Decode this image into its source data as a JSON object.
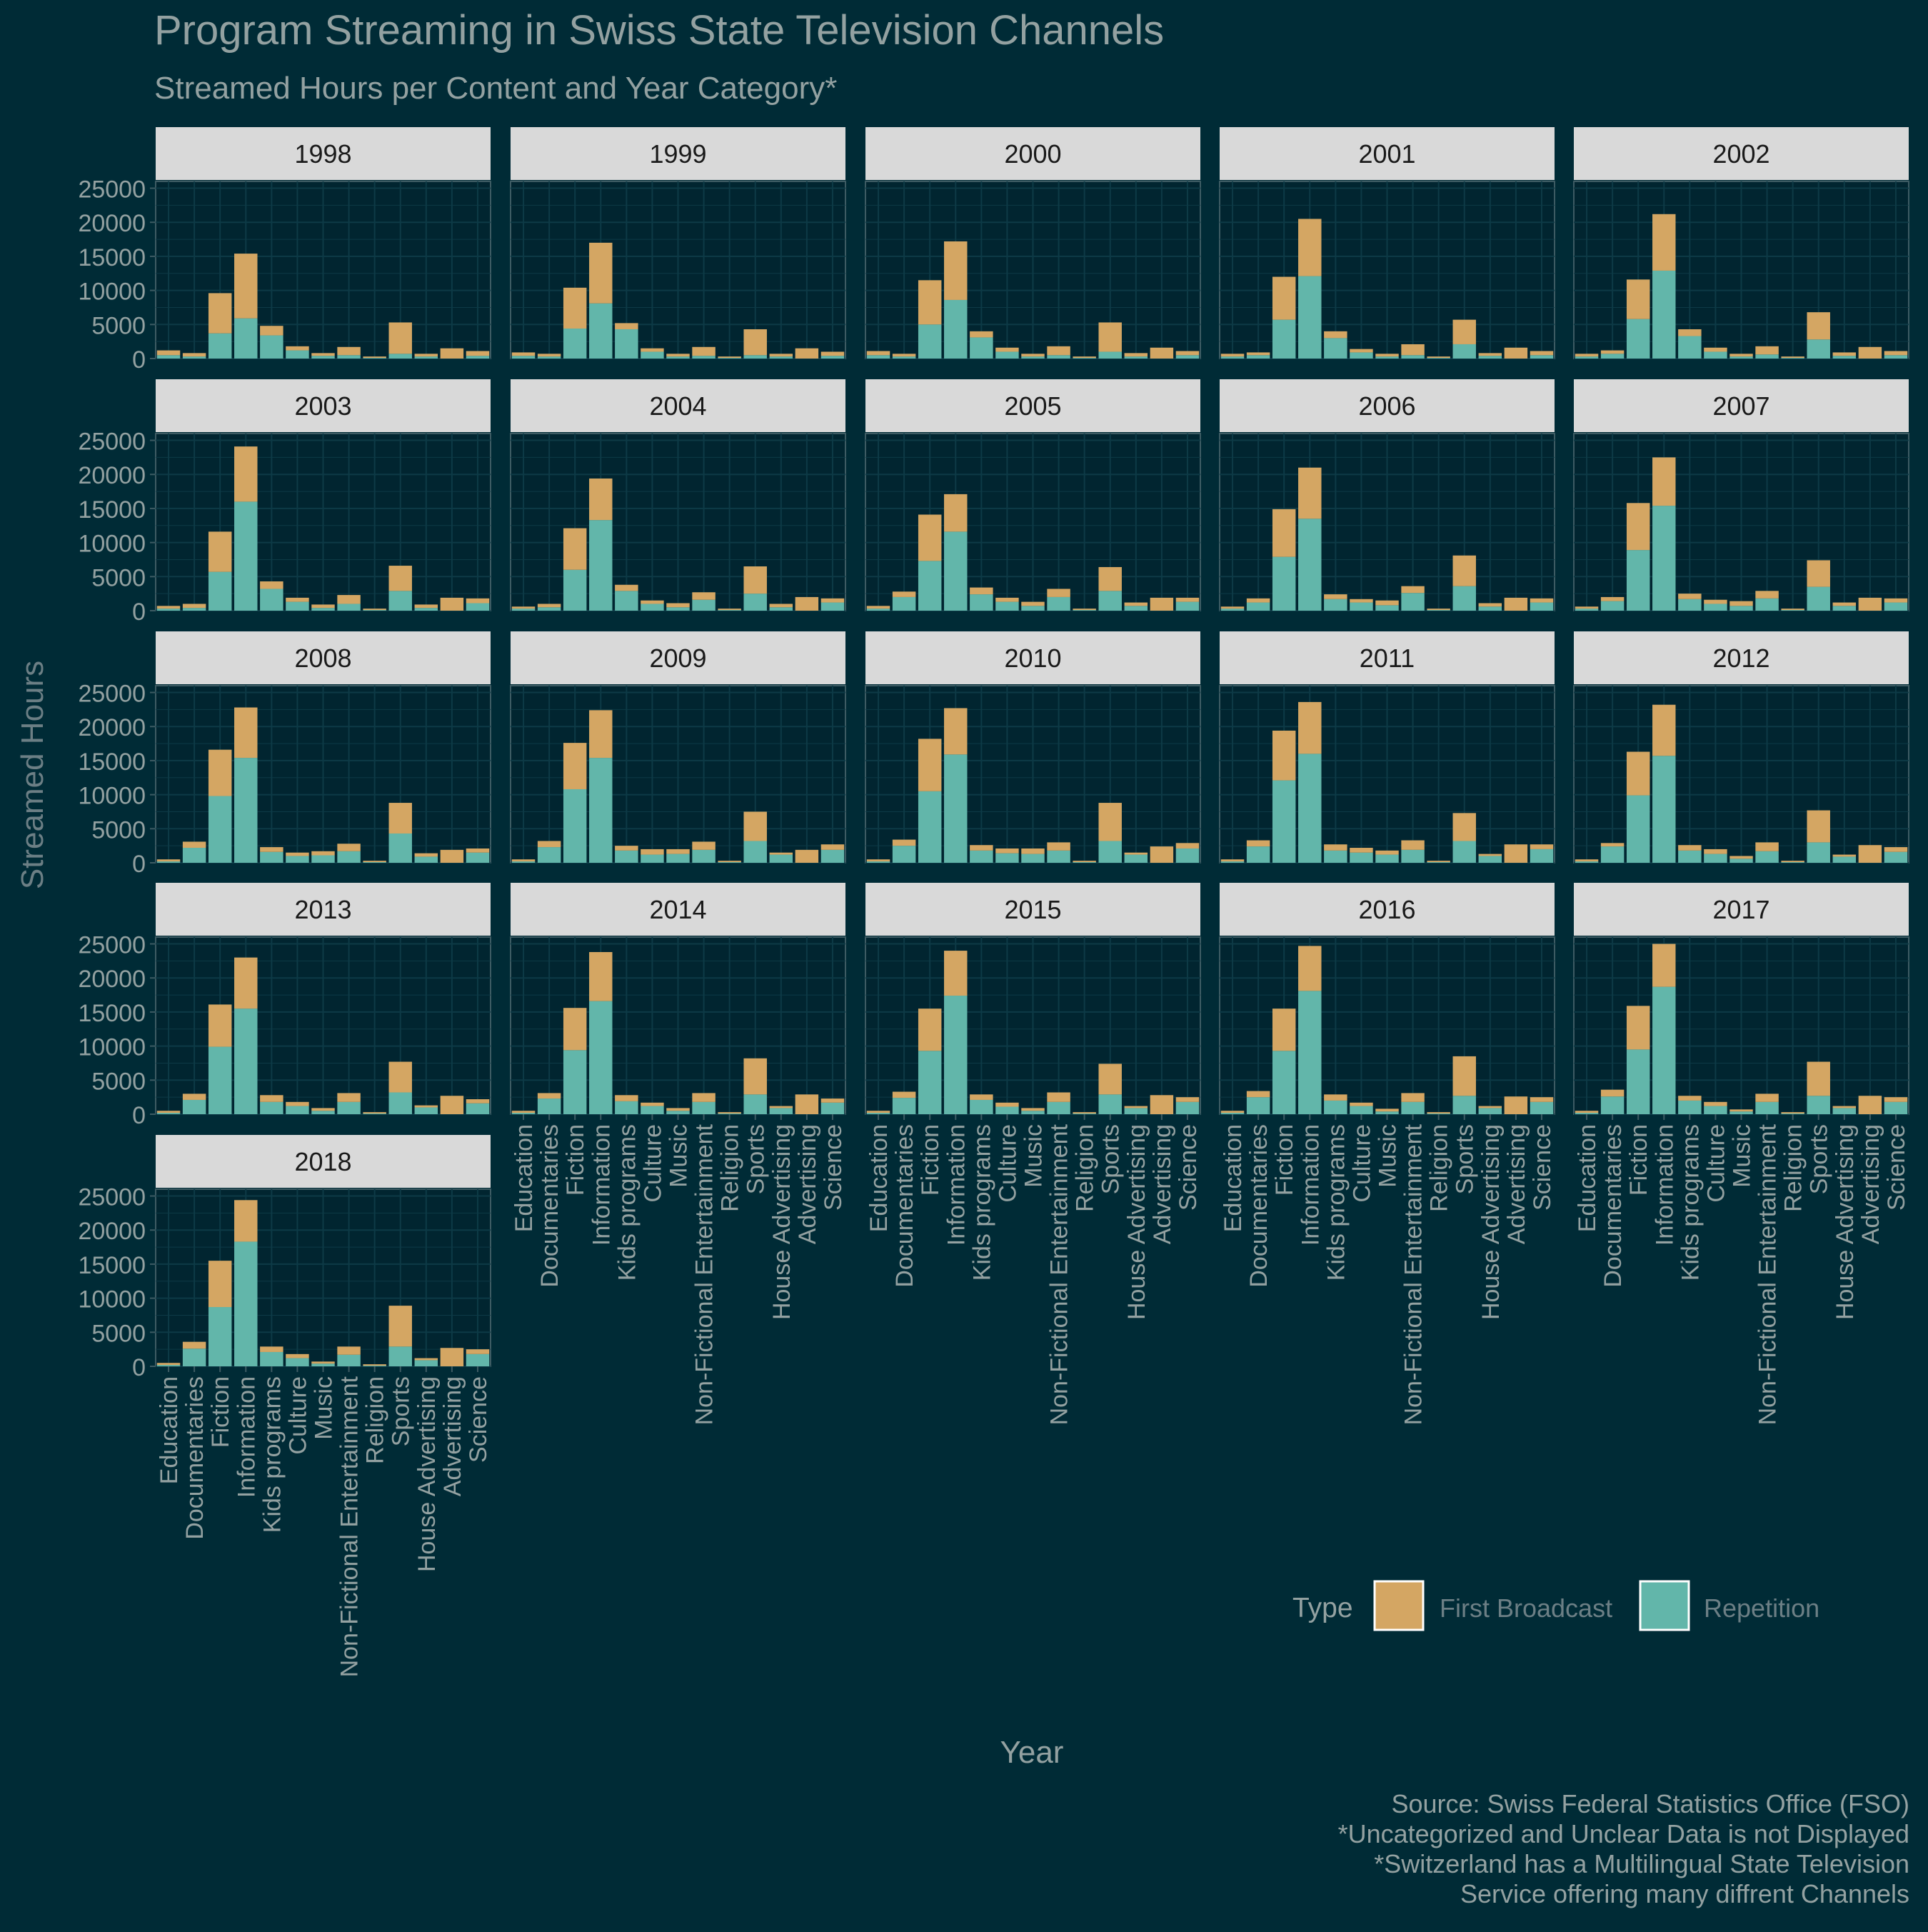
{
  "chart_data": {
    "type": "bar",
    "stacked": true,
    "facet_by": "year",
    "title": "Program Streaming in Swiss State Television Channels",
    "subtitle": "Streamed Hours per Content and Year Category*",
    "xlabel": "Year",
    "ylabel": "Streamed Hours",
    "ylim": [
      0,
      26000
    ],
    "yticks": [
      0,
      5000,
      10000,
      15000,
      20000,
      25000
    ],
    "grid": true,
    "legend": {
      "title": "Type",
      "placement": "bottom-right",
      "items": [
        {
          "name": "First Broadcast",
          "color": "#d4a663"
        },
        {
          "name": "Repetition",
          "color": "#62b6aa"
        }
      ]
    },
    "categories": [
      "Education",
      "Documentaries",
      "Fiction",
      "Information",
      "Kids programs",
      "Culture",
      "Music",
      "Non-Fictional Entertainment",
      "Religion",
      "Sports",
      "House Advertising",
      "Advertising",
      "Science"
    ],
    "facets": [
      {
        "year": "1998",
        "repetition": [
          500,
          300,
          3700,
          5900,
          3400,
          1200,
          400,
          500,
          100,
          700,
          300,
          0,
          400
        ],
        "first_broadcast": [
          700,
          500,
          5900,
          9500,
          1400,
          600,
          400,
          1200,
          200,
          4600,
          400,
          1500,
          700
        ]
      },
      {
        "year": "1999",
        "repetition": [
          400,
          300,
          4400,
          8100,
          4300,
          1000,
          300,
          400,
          100,
          500,
          300,
          0,
          400
        ],
        "first_broadcast": [
          500,
          400,
          6000,
          8900,
          900,
          500,
          400,
          1300,
          200,
          3800,
          400,
          1500,
          600
        ]
      },
      {
        "year": "2000",
        "repetition": [
          500,
          300,
          5000,
          8600,
          3100,
          1000,
          300,
          500,
          100,
          1000,
          300,
          0,
          500
        ],
        "first_broadcast": [
          600,
          400,
          6500,
          8600,
          900,
          600,
          400,
          1300,
          200,
          4300,
          500,
          1600,
          600
        ]
      },
      {
        "year": "2001",
        "repetition": [
          300,
          500,
          5700,
          12100,
          3000,
          900,
          300,
          500,
          100,
          2100,
          400,
          0,
          500
        ],
        "first_broadcast": [
          400,
          400,
          6300,
          8400,
          1000,
          500,
          400,
          1600,
          200,
          3600,
          400,
          1600,
          600
        ]
      },
      {
        "year": "2002",
        "repetition": [
          300,
          700,
          5800,
          12900,
          3300,
          1000,
          300,
          600,
          100,
          2800,
          400,
          0,
          500
        ],
        "first_broadcast": [
          400,
          500,
          5800,
          8300,
          1000,
          600,
          400,
          1200,
          200,
          4000,
          500,
          1700,
          600
        ]
      },
      {
        "year": "2003",
        "repetition": [
          300,
          400,
          5700,
          16000,
          3200,
          1300,
          400,
          1000,
          100,
          2900,
          400,
          0,
          1100
        ],
        "first_broadcast": [
          400,
          600,
          5900,
          8100,
          1100,
          600,
          500,
          1300,
          200,
          3700,
          500,
          1900,
          700
        ]
      },
      {
        "year": "2004",
        "repetition": [
          300,
          500,
          6000,
          13300,
          2900,
          1000,
          500,
          1600,
          100,
          2500,
          500,
          0,
          1200
        ],
        "first_broadcast": [
          300,
          500,
          6100,
          6100,
          900,
          500,
          600,
          1100,
          200,
          4000,
          500,
          2000,
          600
        ]
      },
      {
        "year": "2005",
        "repetition": [
          300,
          2000,
          7300,
          11600,
          2400,
          1300,
          700,
          2000,
          100,
          2900,
          700,
          0,
          1300
        ],
        "first_broadcast": [
          400,
          800,
          6800,
          5500,
          1000,
          600,
          600,
          1200,
          200,
          3500,
          500,
          1900,
          600
        ]
      },
      {
        "year": "2006",
        "repetition": [
          300,
          1200,
          7900,
          13500,
          1700,
          1200,
          800,
          2600,
          100,
          3600,
          600,
          0,
          1200
        ],
        "first_broadcast": [
          300,
          600,
          7000,
          7500,
          700,
          500,
          700,
          1000,
          200,
          4500,
          500,
          1900,
          600
        ]
      },
      {
        "year": "2007",
        "repetition": [
          300,
          1400,
          8900,
          15400,
          1700,
          1000,
          700,
          1800,
          100,
          3500,
          700,
          0,
          1200
        ],
        "first_broadcast": [
          300,
          600,
          6900,
          7100,
          800,
          600,
          700,
          1100,
          200,
          3900,
          500,
          1900,
          600
        ]
      },
      {
        "year": "2008",
        "repetition": [
          200,
          2200,
          9800,
          15400,
          1600,
          1000,
          1100,
          1700,
          100,
          4300,
          900,
          0,
          1500
        ],
        "first_broadcast": [
          300,
          900,
          6800,
          7400,
          700,
          500,
          600,
          1100,
          200,
          4500,
          500,
          1900,
          600
        ]
      },
      {
        "year": "2009",
        "repetition": [
          200,
          2300,
          10800,
          15400,
          1800,
          1200,
          1300,
          1900,
          100,
          3200,
          1200,
          0,
          1900
        ],
        "first_broadcast": [
          300,
          900,
          6800,
          7000,
          700,
          800,
          700,
          1200,
          200,
          4300,
          300,
          1900,
          800
        ]
      },
      {
        "year": "2010",
        "repetition": [
          200,
          2500,
          10500,
          15900,
          1800,
          1400,
          1300,
          1800,
          100,
          3200,
          1200,
          0,
          2100
        ],
        "first_broadcast": [
          300,
          900,
          7700,
          6800,
          800,
          700,
          800,
          1200,
          200,
          5600,
          300,
          2400,
          800
        ]
      },
      {
        "year": "2011",
        "repetition": [
          200,
          2400,
          12100,
          16000,
          1800,
          1500,
          1200,
          1900,
          100,
          3200,
          1000,
          0,
          2000
        ],
        "first_broadcast": [
          300,
          900,
          7300,
          7600,
          900,
          700,
          600,
          1400,
          200,
          4100,
          300,
          2700,
          700
        ]
      },
      {
        "year": "2012",
        "repetition": [
          200,
          2400,
          9900,
          15700,
          1800,
          1300,
          600,
          1700,
          100,
          3000,
          900,
          0,
          1600
        ],
        "first_broadcast": [
          300,
          500,
          6400,
          7500,
          800,
          700,
          400,
          1300,
          200,
          4700,
          300,
          2600,
          700
        ]
      },
      {
        "year": "2013",
        "repetition": [
          200,
          2100,
          9900,
          15500,
          1800,
          1200,
          500,
          1800,
          100,
          3200,
          1000,
          0,
          1600
        ],
        "first_broadcast": [
          300,
          900,
          6200,
          7500,
          1000,
          600,
          400,
          1300,
          200,
          4500,
          300,
          2700,
          600
        ]
      },
      {
        "year": "2014",
        "repetition": [
          200,
          2300,
          9400,
          16600,
          1900,
          1200,
          500,
          1800,
          100,
          2900,
          900,
          0,
          1700
        ],
        "first_broadcast": [
          300,
          800,
          6200,
          7200,
          900,
          500,
          400,
          1300,
          200,
          5300,
          300,
          2900,
          600
        ]
      },
      {
        "year": "2015",
        "repetition": [
          200,
          2400,
          9300,
          17400,
          2100,
          1100,
          500,
          1800,
          100,
          2900,
          900,
          0,
          1800
        ],
        "first_broadcast": [
          300,
          900,
          6200,
          6600,
          800,
          600,
          400,
          1400,
          200,
          4500,
          300,
          2800,
          700
        ]
      },
      {
        "year": "2016",
        "repetition": [
          200,
          2500,
          9300,
          18100,
          2000,
          1200,
          400,
          1800,
          100,
          2700,
          900,
          0,
          1800
        ],
        "first_broadcast": [
          300,
          900,
          6200,
          6600,
          900,
          500,
          400,
          1300,
          200,
          5800,
          300,
          2600,
          700
        ]
      },
      {
        "year": "2017",
        "repetition": [
          200,
          2600,
          9500,
          18700,
          2000,
          1200,
          400,
          1800,
          100,
          2700,
          900,
          0,
          1800
        ],
        "first_broadcast": [
          300,
          1000,
          6400,
          6300,
          700,
          600,
          300,
          1200,
          200,
          5000,
          300,
          2700,
          700
        ]
      },
      {
        "year": "2018",
        "repetition": [
          200,
          2600,
          8700,
          18300,
          2100,
          1200,
          400,
          1700,
          100,
          2900,
          900,
          0,
          1800
        ],
        "first_broadcast": [
          300,
          1000,
          6800,
          6100,
          800,
          600,
          300,
          1200,
          200,
          6000,
          300,
          2700,
          700
        ]
      }
    ]
  },
  "caption": {
    "lines": [
      "Source: Swiss Federal Statistics Office (FSO)",
      "*Uncategorized and Unclear Data is not Displayed",
      "*Switzerland has a Multilingual State Television",
      "Service offering many diffrent Channels"
    ]
  },
  "colors": {
    "background": "#002b36",
    "panel": "#012530",
    "grid": "#0d3a46",
    "strip": "#d9d9d9",
    "text_muted": "#93a1a1",
    "first_broadcast": "#d4a663",
    "repetition": "#62b6aa"
  }
}
